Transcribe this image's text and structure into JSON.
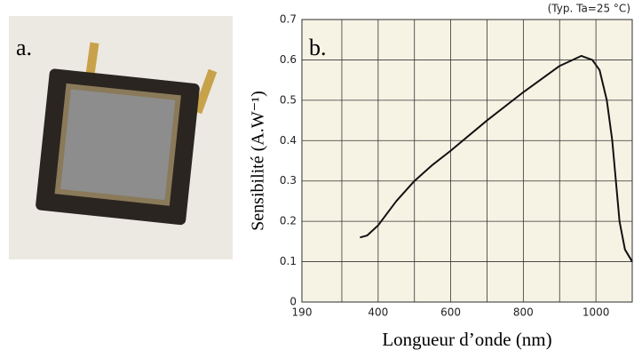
{
  "panel_labels": [
    "a.",
    "b."
  ],
  "chart_data": {
    "type": "line",
    "annotation": "(Typ. Ta=25 °C)",
    "x_label": "Longueur d’onde (nm)",
    "y_label": "Sensibilité (A.W⁻¹)",
    "x": [
      350,
      370,
      400,
      450,
      500,
      550,
      600,
      700,
      800,
      900,
      960,
      990,
      1010,
      1030,
      1045,
      1055,
      1065,
      1080,
      1100
    ],
    "series": [
      {
        "color": "#111111",
        "values": [
          0.16,
          0.165,
          0.19,
          0.25,
          0.3,
          0.34,
          0.375,
          0.45,
          0.52,
          0.585,
          0.61,
          0.6,
          0.575,
          0.5,
          0.4,
          0.3,
          0.2,
          0.13,
          0.1
        ]
      }
    ],
    "xlim": [
      190,
      1100
    ],
    "xticks": [
      190,
      400,
      600,
      800,
      1000
    ],
    "x_minor_gridlines": [
      300,
      500,
      700,
      900,
      1100
    ],
    "ylim": [
      0,
      0.7
    ],
    "yticks": [
      0,
      0.1,
      0.2,
      0.3,
      0.4,
      0.5,
      0.6,
      0.7
    ],
    "grid": true,
    "plot_background": "#f7f3e4"
  }
}
